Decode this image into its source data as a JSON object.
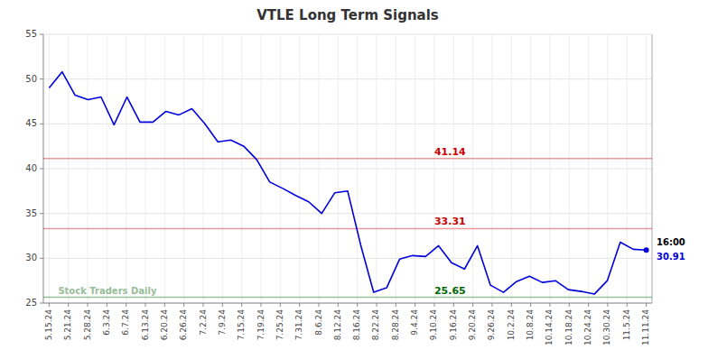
{
  "chart_data": {
    "type": "line",
    "title": "VTLE Long Term Signals",
    "color": "#0000dd",
    "x": [
      0,
      0.673913,
      1.347826,
      2.021739,
      2.695652,
      3.369565,
      4.043478,
      4.717391,
      5.391304,
      6.065217,
      6.73913,
      7.413043,
      8.086957,
      8.76087,
      9.434783,
      10.108696,
      10.782609,
      11.456522,
      12.130435,
      12.804348,
      13.478261,
      14.152174,
      14.826087,
      15.5,
      16.173913,
      16.847826,
      17.521739,
      18.195652,
      18.869565,
      19.543478,
      20.217391,
      20.891304,
      21.565217,
      22.23913,
      22.913043,
      23.586957,
      24.26087,
      24.934783,
      25.608696,
      26.282609,
      26.956522,
      27.630435,
      28.304348,
      28.978261,
      29.652174,
      30.326087,
      31
    ],
    "values": [
      49.0,
      50.8,
      48.2,
      47.7,
      48.0,
      44.9,
      48.0,
      45.2,
      45.2,
      46.4,
      46.0,
      46.7,
      45.0,
      43.0,
      43.2,
      42.5,
      41.0,
      38.5,
      37.8,
      37.0,
      36.3,
      35.0,
      37.3,
      37.5,
      31.5,
      26.2,
      26.7,
      29.9,
      30.3,
      30.2,
      31.4,
      29.5,
      28.8,
      31.4,
      27.0,
      26.2,
      27.4,
      28.0,
      27.3,
      27.5,
      26.5,
      26.3,
      26.0,
      27.5,
      31.8,
      31.0,
      30.91
    ],
    "xlim": [
      -0.3,
      31.3
    ],
    "xticks": [
      {
        "value": 0,
        "label": "5.15.24"
      },
      {
        "value": 1,
        "label": "5.21.24"
      },
      {
        "value": 2,
        "label": "5.28.24"
      },
      {
        "value": 3,
        "label": "6.3.24"
      },
      {
        "value": 4,
        "label": "6.7.24"
      },
      {
        "value": 5,
        "label": "6.13.24"
      },
      {
        "value": 6,
        "label": "6.20.24"
      },
      {
        "value": 7,
        "label": "6.26.24"
      },
      {
        "value": 8,
        "label": "7.2.24"
      },
      {
        "value": 9,
        "label": "7.9.24"
      },
      {
        "value": 10,
        "label": "7.15.24"
      },
      {
        "value": 11,
        "label": "7.19.24"
      },
      {
        "value": 12,
        "label": "7.25.24"
      },
      {
        "value": 13,
        "label": "7.31.24"
      },
      {
        "value": 14,
        "label": "8.6.24"
      },
      {
        "value": 15,
        "label": "8.12.24"
      },
      {
        "value": 16,
        "label": "8.16.24"
      },
      {
        "value": 17,
        "label": "8.22.24"
      },
      {
        "value": 18,
        "label": "8.28.24"
      },
      {
        "value": 19,
        "label": "9.4.24"
      },
      {
        "value": 20,
        "label": "9.10.24"
      },
      {
        "value": 21,
        "label": "9.16.24"
      },
      {
        "value": 22,
        "label": "9.20.24"
      },
      {
        "value": 23,
        "label": "9.26.24"
      },
      {
        "value": 24,
        "label": "10.2.24"
      },
      {
        "value": 25,
        "label": "10.8.24"
      },
      {
        "value": 26,
        "label": "10.14.24"
      },
      {
        "value": 27,
        "label": "10.18.24"
      },
      {
        "value": 28,
        "label": "10.24.24"
      },
      {
        "value": 29,
        "label": "10.30.24"
      },
      {
        "value": 30,
        "label": "11.5.24"
      },
      {
        "value": 31,
        "label": "11.11.24"
      }
    ],
    "ylim": [
      25,
      55
    ],
    "yticks": [
      25,
      30,
      35,
      40,
      45,
      50,
      55
    ],
    "grid": true,
    "hlines": [
      {
        "value": 41.14,
        "color": "#cc0000"
      },
      {
        "value": 33.31,
        "color": "#cc0000"
      },
      {
        "value": 25.65,
        "color": "#006600"
      }
    ],
    "annotations": [
      "Stock Traders Daily",
      "16:00"
    ]
  }
}
